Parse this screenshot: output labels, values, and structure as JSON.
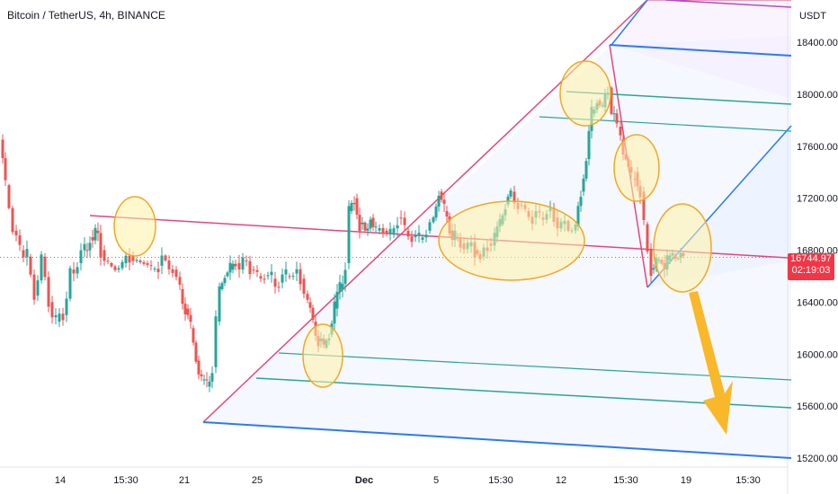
{
  "header": {
    "symbol": "Bitcoin / TetherUS",
    "interval": "4h",
    "exchange": "BINANCE"
  },
  "axis": {
    "currency": "USDT",
    "price_ticks": [
      "18400.00",
      "18000.00",
      "17600.00",
      "17200.00",
      "16800.00",
      "16400.00",
      "16000.00",
      "15600.00",
      "15200.00"
    ],
    "time_ticks": [
      "14",
      "15:30",
      "21",
      "25",
      "Dec",
      "5",
      "15:30",
      "12",
      "15:30",
      "19",
      "15:30"
    ]
  },
  "price_badge": {
    "price": "16744.97",
    "countdown": "02:19:03"
  },
  "colors": {
    "up": "#26a69a",
    "down": "#ef5350",
    "pink_line": "#e8457a",
    "blue_line": "#2979ff",
    "green_line": "#26a69a",
    "purple_line": "#b24bd1",
    "highlight_fill": "#fff3a8",
    "highlight_stroke": "#f5a623",
    "arrow": "#f9b82a",
    "badge": "#f23645"
  },
  "chart_data": {
    "type": "candlestick",
    "title": "Bitcoin / TetherUS, 4h, BINANCE",
    "ylabel": "USDT",
    "ylim": [
      15200,
      18900
    ],
    "last_price": 16744.97,
    "x_ticks": [
      "14",
      "15:30",
      "21",
      "25",
      "Dec",
      "5",
      "15:30",
      "12",
      "15:30",
      "19",
      "15:30"
    ],
    "price_path": [
      [
        0,
        17650
      ],
      [
        6,
        17300
      ],
      [
        14,
        16950
      ],
      [
        22,
        16800
      ],
      [
        30,
        16750
      ],
      [
        38,
        16450
      ],
      [
        46,
        16750
      ],
      [
        54,
        16400
      ],
      [
        62,
        16250
      ],
      [
        70,
        16300
      ],
      [
        78,
        16650
      ],
      [
        86,
        16700
      ],
      [
        94,
        16800
      ],
      [
        100,
        16900
      ],
      [
        106,
        16950
      ],
      [
        112,
        16800
      ],
      [
        120,
        16700
      ],
      [
        128,
        16650
      ],
      [
        136,
        16700
      ],
      [
        144,
        16760
      ],
      [
        152,
        16720
      ],
      [
        160,
        16700
      ],
      [
        168,
        16650
      ],
      [
        176,
        16680
      ],
      [
        184,
        16720
      ],
      [
        192,
        16650
      ],
      [
        200,
        16500
      ],
      [
        206,
        16350
      ],
      [
        212,
        16200
      ],
      [
        218,
        15950
      ],
      [
        224,
        15800
      ],
      [
        230,
        15750
      ],
      [
        236,
        15900
      ],
      [
        240,
        16250
      ],
      [
        244,
        16500
      ],
      [
        250,
        16600
      ],
      [
        256,
        16650
      ],
      [
        262,
        16700
      ],
      [
        270,
        16720
      ],
      [
        278,
        16650
      ],
      [
        286,
        16600
      ],
      [
        294,
        16600
      ],
      [
        302,
        16580
      ],
      [
        310,
        16550
      ],
      [
        318,
        16600
      ],
      [
        326,
        16620
      ],
      [
        334,
        16580
      ],
      [
        342,
        16400
      ],
      [
        348,
        16250
      ],
      [
        354,
        16100
      ],
      [
        360,
        16050
      ],
      [
        366,
        16150
      ],
      [
        372,
        16350
      ],
      [
        378,
        16500
      ],
      [
        384,
        16700
      ],
      [
        388,
        17100
      ],
      [
        394,
        17200
      ],
      [
        400,
        17000
      ],
      [
        406,
        16950
      ],
      [
        412,
        17050
      ],
      [
        418,
        16950
      ],
      [
        426,
        16950
      ],
      [
        434,
        16920
      ],
      [
        442,
        17050
      ],
      [
        450,
        16950
      ],
      [
        458,
        16900
      ],
      [
        466,
        16880
      ],
      [
        474,
        16950
      ],
      [
        482,
        17050
      ],
      [
        488,
        17250
      ],
      [
        494,
        17100
      ],
      [
        500,
        16950
      ],
      [
        506,
        16900
      ],
      [
        512,
        16850
      ],
      [
        520,
        16830
      ],
      [
        528,
        16800
      ],
      [
        534,
        16750
      ],
      [
        542,
        16850
      ],
      [
        550,
        16900
      ],
      [
        556,
        17000
      ],
      [
        562,
        17150
      ],
      [
        568,
        17250
      ],
      [
        576,
        17150
      ],
      [
        584,
        17100
      ],
      [
        592,
        17050
      ],
      [
        600,
        17050
      ],
      [
        608,
        17100
      ],
      [
        616,
        17050
      ],
      [
        624,
        17000
      ],
      [
        632,
        16950
      ],
      [
        640,
        16980
      ],
      [
        646,
        17250
      ],
      [
        652,
        17500
      ],
      [
        658,
        17850
      ],
      [
        664,
        17950
      ],
      [
        670,
        17900
      ],
      [
        676,
        18050
      ],
      [
        680,
        17850
      ],
      [
        686,
        17750
      ],
      [
        690,
        17650
      ],
      [
        696,
        17500
      ],
      [
        702,
        17350
      ],
      [
        706,
        17400
      ],
      [
        712,
        17250
      ],
      [
        716,
        17000
      ],
      [
        720,
        16800
      ],
      [
        724,
        16650
      ],
      [
        730,
        16720
      ],
      [
        736,
        16700
      ],
      [
        742,
        16720
      ],
      [
        748,
        16760
      ],
      [
        754,
        16740
      ],
      [
        760,
        16745
      ]
    ],
    "annotations": {
      "highlight_circles": 6,
      "projected_direction": "down"
    }
  }
}
